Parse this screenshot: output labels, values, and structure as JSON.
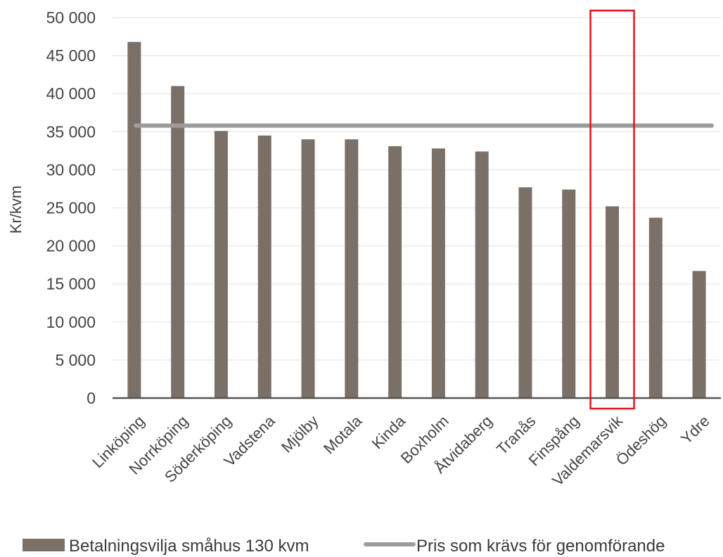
{
  "chart_data": {
    "type": "bar",
    "categories": [
      "Linköping",
      "Norrköping",
      "Söderköping",
      "Vadstena",
      "Mjölby",
      "Motala",
      "Kinda",
      "Boxholm",
      "Åtvidaberg",
      "Tranås",
      "Finspång",
      "Valdemarsvik",
      "Ödeshög",
      "Ydre"
    ],
    "series": [
      {
        "name": "Betalningsvilja småhus 130 kvm",
        "type": "bar",
        "values": [
          46800,
          41000,
          35100,
          34500,
          34000,
          34000,
          33100,
          32800,
          32400,
          27700,
          27400,
          25200,
          23700,
          16700
        ]
      },
      {
        "name": "Pris som krävs för genomförande",
        "type": "line",
        "value": 35800
      }
    ],
    "ylabel": "Kr/kvm",
    "xlabel": "",
    "ylim": [
      0,
      50000
    ],
    "yticks": [
      "0",
      "5 000",
      "10 000",
      "15 000",
      "20 000",
      "25 000",
      "30 000",
      "35 000",
      "40 000",
      "45 000",
      "50 000"
    ],
    "grid": true,
    "legend_position": "bottom",
    "highlight_category": "Valdemarsvik",
    "colors": {
      "bar": "#7b7067",
      "line": "#9c9c9c",
      "highlight": "#e0161b",
      "grid": "#ebebeb",
      "axis": "#555555"
    }
  }
}
